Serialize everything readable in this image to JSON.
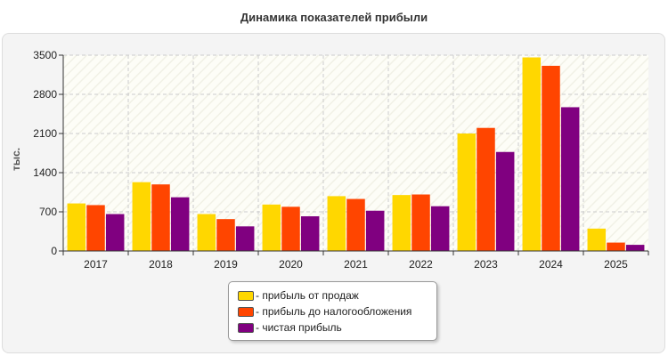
{
  "chart_data": {
    "type": "bar",
    "title": "Динамика показателей прибыли",
    "ylabel": "тыс.",
    "xlabel": "",
    "ylim": [
      0,
      3500
    ],
    "yticks": [
      0,
      700,
      1400,
      2100,
      2800,
      3500
    ],
    "grid": true,
    "legend_position": "bottom",
    "categories": [
      "2017",
      "2018",
      "2019",
      "2020",
      "2021",
      "2022",
      "2023",
      "2024",
      "2025"
    ],
    "series": [
      {
        "name": "- прибыль от продаж",
        "color": "#ffd700",
        "values": [
          850,
          1230,
          660,
          830,
          980,
          1000,
          2100,
          3460,
          400
        ]
      },
      {
        "name": "- прибыль до налогообложения",
        "color": "#ff4500",
        "values": [
          820,
          1190,
          570,
          790,
          930,
          1010,
          2200,
          3310,
          150
        ]
      },
      {
        "name": "- чистая прибыль",
        "color": "#800080",
        "values": [
          660,
          960,
          440,
          620,
          720,
          800,
          1770,
          2570,
          110
        ]
      }
    ]
  }
}
